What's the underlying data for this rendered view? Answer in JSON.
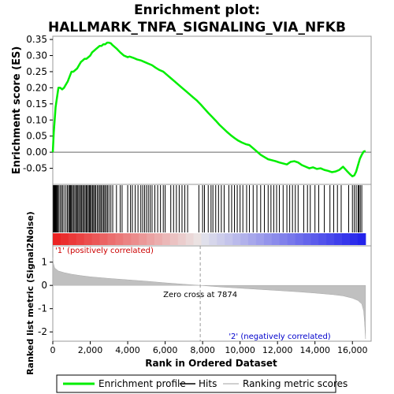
{
  "chart_data": {
    "type": "line",
    "title_line1": "Enrichment plot:",
    "title_line2": "HALLMARK_TNFA_SIGNALING_VIA_NFKB",
    "es_panel": {
      "ylabel": "Enrichment score (ES)",
      "ylim": [
        -0.1,
        0.36
      ],
      "yticks": [
        -0.05,
        0.0,
        0.05,
        0.1,
        0.15,
        0.2,
        0.25,
        0.3,
        0.35
      ],
      "ytick_labels": [
        "-0.05",
        "0.00",
        "0.05",
        "0.10",
        "0.15",
        "0.20",
        "0.25",
        "0.30",
        "0.35"
      ],
      "series": [
        {
          "name": "Enrichment profile",
          "color": "#00ee00",
          "x": [
            0,
            50,
            100,
            150,
            200,
            300,
            400,
            500,
            600,
            700,
            800,
            900,
            1000,
            1100,
            1200,
            1300,
            1400,
            1500,
            1600,
            1700,
            1800,
            1900,
            2000,
            2100,
            2200,
            2300,
            2400,
            2500,
            2600,
            2700,
            2800,
            2900,
            3000,
            3100,
            3200,
            3400,
            3600,
            3800,
            4000,
            4100,
            4300,
            4500,
            4700,
            4900,
            5100,
            5300,
            5500,
            5700,
            5900,
            6100,
            6300,
            6500,
            6700,
            6900,
            7100,
            7300,
            7500,
            7700,
            7900,
            8100,
            8300,
            8500,
            8700,
            8900,
            9100,
            9300,
            9500,
            9700,
            9900,
            10100,
            10300,
            10500,
            10700,
            10900,
            11100,
            11300,
            11500,
            11700,
            11900,
            12100,
            12300,
            12500,
            12700,
            12900,
            13100,
            13300,
            13500,
            13700,
            13900,
            14100,
            14300,
            14500,
            14700,
            14900,
            15100,
            15300,
            15500,
            15700,
            15900,
            16000,
            16100,
            16200,
            16300,
            16400,
            16500,
            16600,
            16700
          ],
          "y": [
            0.0,
            0.06,
            0.1,
            0.14,
            0.16,
            0.2,
            0.2,
            0.195,
            0.2,
            0.21,
            0.22,
            0.235,
            0.25,
            0.25,
            0.255,
            0.26,
            0.27,
            0.28,
            0.285,
            0.29,
            0.29,
            0.295,
            0.3,
            0.31,
            0.315,
            0.32,
            0.325,
            0.33,
            0.33,
            0.335,
            0.335,
            0.34,
            0.34,
            0.338,
            0.332,
            0.322,
            0.31,
            0.3,
            0.295,
            0.297,
            0.293,
            0.288,
            0.285,
            0.28,
            0.275,
            0.27,
            0.262,
            0.255,
            0.25,
            0.24,
            0.23,
            0.22,
            0.21,
            0.2,
            0.19,
            0.18,
            0.17,
            0.16,
            0.148,
            0.135,
            0.122,
            0.11,
            0.098,
            0.085,
            0.074,
            0.063,
            0.053,
            0.044,
            0.036,
            0.03,
            0.025,
            0.022,
            0.012,
            0.002,
            -0.008,
            -0.015,
            -0.022,
            -0.025,
            -0.028,
            -0.032,
            -0.035,
            -0.038,
            -0.03,
            -0.028,
            -0.032,
            -0.04,
            -0.045,
            -0.05,
            -0.047,
            -0.052,
            -0.05,
            -0.055,
            -0.058,
            -0.062,
            -0.06,
            -0.055,
            -0.045,
            -0.058,
            -0.07,
            -0.075,
            -0.072,
            -0.06,
            -0.04,
            -0.02,
            -0.008,
            0.002,
            0.004
          ]
        }
      ]
    },
    "hits_panel": {
      "legend_label": "Hits",
      "hit_ranks": [
        30,
        60,
        90,
        120,
        150,
        180,
        210,
        260,
        300,
        380,
        450,
        520,
        600,
        700,
        780,
        850,
        900,
        950,
        1000,
        1050,
        1120,
        1180,
        1250,
        1300,
        1350,
        1420,
        1480,
        1530,
        1600,
        1650,
        1720,
        1780,
        1830,
        1900,
        1950,
        2000,
        2060,
        2120,
        2180,
        2240,
        2300,
        2380,
        2450,
        2520,
        2580,
        2650,
        2720,
        2780,
        2850,
        2920,
        3000,
        3100,
        3200,
        3400,
        3600,
        3700,
        4000,
        4150,
        4250,
        4400,
        4550,
        4700,
        4800,
        4900,
        5000,
        5100,
        5200,
        5300,
        5450,
        5600,
        5750,
        5900,
        6000,
        6300,
        6450,
        6600,
        6750,
        6900,
        7050,
        7200,
        7800,
        8000,
        8100,
        8300,
        8450,
        8550,
        8700,
        8850,
        9000,
        9150,
        9400,
        9550,
        9700,
        9850,
        10000,
        10150,
        10350,
        10500,
        10700,
        10900,
        11100,
        11300,
        11500,
        11650,
        11800,
        11950,
        12100,
        12300,
        12500,
        12650,
        12800,
        12950,
        13100,
        13400,
        13600,
        13750,
        14000,
        14200,
        14500,
        14800,
        15000,
        15200,
        15400,
        15800,
        16000,
        16100,
        16200,
        16300,
        16350,
        16420,
        16500
      ]
    },
    "rank_panel": {
      "ylabel": "Ranked list metric (Signal2Noise)",
      "xlabel": "Rank in Ordered Dataset",
      "ylim": [
        -2.4,
        1.7
      ],
      "yticks": [
        -2,
        -1,
        0,
        1
      ],
      "ytick_labels": [
        "-2",
        "-1",
        "0",
        "1"
      ],
      "xlim": [
        0,
        17000
      ],
      "xticks": [
        0,
        2000,
        4000,
        6000,
        8000,
        10000,
        12000,
        14000,
        16000
      ],
      "xtick_labels": [
        "0",
        "2,000",
        "4,000",
        "6,000",
        "8,000",
        "10,000",
        "12,000",
        "14,000",
        "16,000"
      ],
      "zero_cross": 7874,
      "zero_cross_label": "Zero cross at 7874",
      "pos_label": "'1' (positively correlated)",
      "neg_label": "'2' (negatively correlated)",
      "pos_color": "#cc0000",
      "neg_color": "#0000cc",
      "metric_profile": {
        "x": [
          0,
          30,
          100,
          300,
          600,
          1000,
          1500,
          2000,
          3000,
          4000,
          5000,
          6000,
          7000,
          7874,
          9000,
          10000,
          11000,
          12000,
          13000,
          14000,
          15000,
          15500,
          16000,
          16300,
          16500,
          16600,
          16650,
          16700
        ],
        "y": [
          1.2,
          0.95,
          0.75,
          0.62,
          0.55,
          0.48,
          0.42,
          0.37,
          0.3,
          0.24,
          0.18,
          0.11,
          0.05,
          0.0,
          -0.07,
          -0.12,
          -0.17,
          -0.22,
          -0.27,
          -0.33,
          -0.4,
          -0.45,
          -0.55,
          -0.65,
          -0.8,
          -1.1,
          -1.6,
          -2.3
        ]
      }
    },
    "xlim": [
      0,
      17000
    ],
    "legend": {
      "items": [
        {
          "label": "Enrichment profile",
          "color": "#00ee00"
        },
        {
          "label": "Hits",
          "color": "#000000"
        },
        {
          "label": "Ranking metric scores",
          "color": "#c0c0c0"
        }
      ]
    }
  }
}
